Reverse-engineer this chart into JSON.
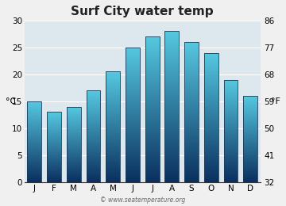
{
  "title": "Surf City water temp",
  "months": [
    "J",
    "F",
    "M",
    "A",
    "M",
    "J",
    "J",
    "A",
    "S",
    "O",
    "N",
    "D"
  ],
  "values": [
    15,
    13,
    14,
    17,
    20.5,
    25,
    27,
    28,
    26,
    24,
    19,
    16
  ],
  "ylim_c": [
    0,
    30
  ],
  "ylim_f": [
    32,
    86
  ],
  "yticks_c": [
    0,
    5,
    10,
    15,
    20,
    25,
    30
  ],
  "yticks_f": [
    32,
    41,
    50,
    59,
    68,
    77,
    86
  ],
  "ylabel_left": "°C",
  "ylabel_right": "°F",
  "bar_color_top": "#55c8e0",
  "bar_color_bottom": "#0a2f5e",
  "bar_border_color": "#1a4a7a",
  "bg_color": "#dde8ee",
  "grid_color": "#ffffff",
  "watermark": "© www.seatemperature.org",
  "title_fontsize": 11,
  "tick_fontsize": 7.5,
  "label_fontsize": 8,
  "watermark_fontsize": 5.5
}
